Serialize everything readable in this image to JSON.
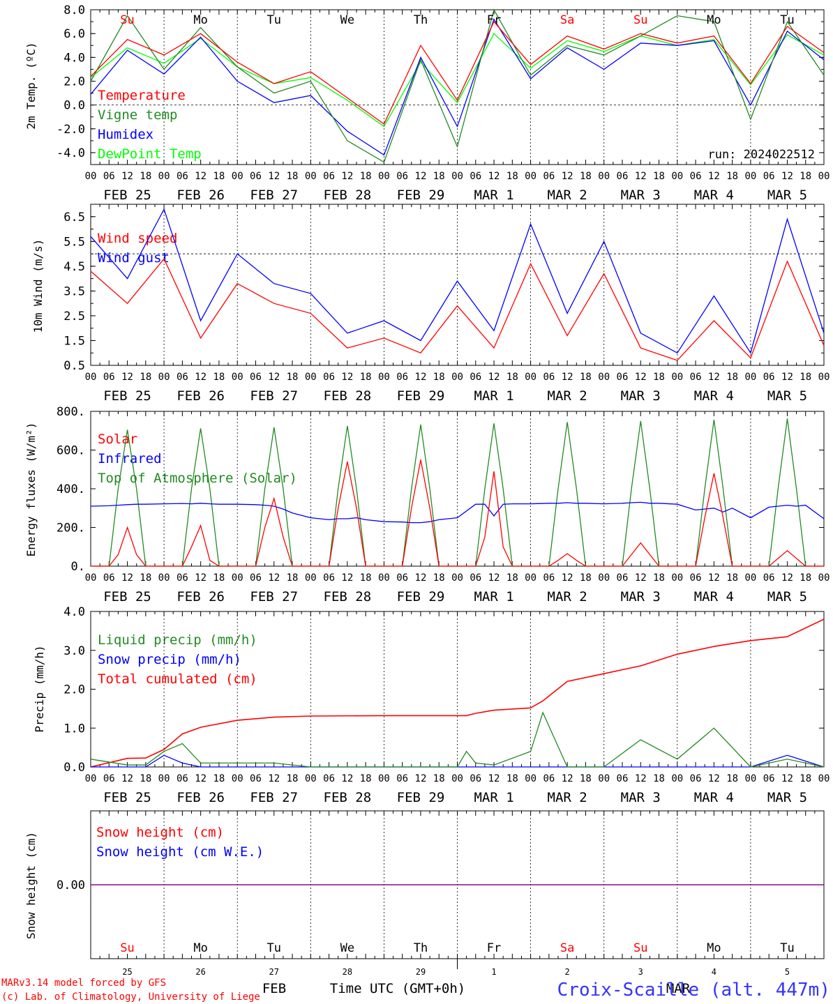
{
  "timeaxis": {
    "hour_labels": [
      "00",
      "06",
      "12",
      "18"
    ],
    "day_labels": [
      "FEB 25",
      "FEB 26",
      "FEB 27",
      "FEB 28",
      "FEB 29",
      "MAR  1",
      "MAR  2",
      "MAR  3",
      "MAR  4",
      "MAR  5"
    ],
    "weekdays": [
      "Su",
      "Mo",
      "Tu",
      "We",
      "Th",
      "Fr",
      "Sa",
      "Su",
      "Mo",
      "Tu"
    ],
    "weekday_colors": [
      "#ff0000",
      "#000000",
      "#000000",
      "#000000",
      "#000000",
      "#000000",
      "#ff0000",
      "#ff0000",
      "#000000",
      "#000000"
    ],
    "day_numbers": [
      "25",
      "26",
      "27",
      "28",
      "29",
      "1",
      "2",
      "3",
      "4",
      "5"
    ],
    "month_feb": "FEB",
    "month_mar": "MAR",
    "xlabel": "Time UTC (GMT+0h)"
  },
  "footer": {
    "model_line": "MARv3.14 model forced by GFS",
    "credit_line": "(c) Lab. of Climatology, University of Liege",
    "location": "Croix-Scaille (alt. 447m)"
  },
  "colors": {
    "red": "#ff0000",
    "green": "#228b22",
    "blue": "#0000ff",
    "lime": "#00ff00",
    "purple": "#800080"
  },
  "chart_data": [
    {
      "type": "line",
      "id": "temp",
      "ylabel": "2m Temp. (ºC)",
      "ylim": [
        -5,
        8
      ],
      "yticks": [
        -4,
        -2,
        0,
        2,
        4,
        6,
        8
      ],
      "ytick_labels": [
        "-4.0",
        "-2.0",
        "0.0",
        "2.0",
        "4.0",
        "6.0",
        "8.0"
      ],
      "ref_line": 0,
      "annotation": "run: 2024022512",
      "x_hours": [
        0,
        12,
        24,
        36,
        48,
        60,
        72,
        84,
        96,
        108,
        120,
        132,
        144,
        156,
        168,
        180,
        192,
        204,
        216,
        228,
        240
      ],
      "series": [
        {
          "name": "Temperature",
          "color": "red",
          "values": [
            2.4,
            5.5,
            4.2,
            6.0,
            3.6,
            1.8,
            2.8,
            0.6,
            -1.6,
            5.0,
            0.4,
            7.0,
            3.4,
            5.8,
            4.7,
            6.0,
            5.2,
            5.8,
            1.8,
            6.6,
            4.4
          ]
        },
        {
          "name": "Vigne temp",
          "color": "green",
          "values": [
            2.0,
            7.5,
            3.0,
            6.5,
            3.2,
            1.0,
            2.0,
            -3.0,
            -4.8,
            3.8,
            -3.5,
            8.0,
            2.5,
            5.0,
            4.2,
            5.8,
            7.5,
            7.0,
            -1.2,
            7.0,
            2.5
          ]
        },
        {
          "name": "Humidex",
          "color": "blue",
          "values": [
            0.9,
            4.6,
            2.6,
            5.7,
            2.0,
            0.2,
            0.8,
            -2.2,
            -4.2,
            4.0,
            -1.8,
            7.2,
            2.2,
            4.8,
            3.0,
            5.2,
            5.0,
            5.4,
            0.0,
            6.2,
            3.8
          ]
        },
        {
          "name": "DewPoint Temp",
          "color": "lime",
          "values": [
            2.3,
            4.8,
            3.5,
            5.6,
            3.2,
            1.8,
            2.3,
            0.4,
            -1.8,
            3.6,
            0.2,
            6.0,
            3.1,
            5.4,
            4.5,
            5.8,
            5.0,
            5.5,
            1.7,
            5.9,
            4.2
          ]
        }
      ]
    },
    {
      "type": "line",
      "id": "wind",
      "ylabel": "10m Wind (m/s)",
      "ylim": [
        0.5,
        7.0
      ],
      "yticks": [
        0.5,
        1.5,
        2.5,
        3.5,
        4.5,
        5.5,
        6.5
      ],
      "ytick_labels": [
        "0.5",
        "1.5",
        "2.5",
        "3.5",
        "4.5",
        "5.5",
        "6.5"
      ],
      "ref_line": 5,
      "x_hours": [
        0,
        12,
        24,
        36,
        48,
        60,
        72,
        84,
        96,
        108,
        120,
        132,
        144,
        156,
        168,
        180,
        192,
        204,
        216,
        228,
        240
      ],
      "series": [
        {
          "name": "Wind speed",
          "color": "red",
          "values": [
            4.3,
            3.0,
            4.8,
            1.6,
            3.8,
            3.0,
            2.6,
            1.2,
            1.6,
            1.0,
            2.9,
            1.2,
            4.6,
            1.7,
            4.2,
            1.2,
            0.7,
            2.3,
            0.8,
            4.7,
            1.3
          ]
        },
        {
          "name": "Wind gust",
          "color": "blue",
          "values": [
            5.7,
            4.0,
            6.8,
            2.3,
            5.0,
            3.8,
            3.4,
            1.8,
            2.3,
            1.5,
            3.9,
            1.9,
            6.2,
            2.6,
            5.5,
            1.8,
            1.0,
            3.3,
            1.0,
            6.4,
            1.8
          ]
        }
      ]
    },
    {
      "type": "line",
      "id": "energy",
      "ylabel": "Energy fluxes (W/m²)",
      "ylim": [
        0,
        800
      ],
      "yticks": [
        0,
        200,
        400,
        600,
        800
      ],
      "ytick_labels": [
        "0.",
        "200.",
        "400.",
        "600.",
        "800."
      ],
      "x_hours": [
        0,
        6,
        9,
        12,
        15,
        18,
        24,
        30,
        33,
        36,
        39,
        42,
        48,
        54,
        57,
        60,
        63,
        66,
        72,
        78,
        81,
        84,
        87,
        90,
        96,
        102,
        105,
        108,
        111,
        114,
        120,
        126,
        129,
        132,
        135,
        138,
        144,
        150,
        153,
        156,
        159,
        162,
        168,
        174,
        177,
        180,
        183,
        186,
        192,
        198,
        201,
        204,
        207,
        210,
        216,
        222,
        225,
        228,
        231,
        234,
        240
      ],
      "series": [
        {
          "name": "Solar",
          "color": "red",
          "values": [
            0,
            0,
            60,
            200,
            60,
            0,
            0,
            0,
            100,
            210,
            30,
            0,
            0,
            0,
            200,
            350,
            150,
            0,
            0,
            0,
            300,
            540,
            300,
            0,
            0,
            0,
            300,
            550,
            300,
            0,
            0,
            0,
            150,
            490,
            100,
            0,
            0,
            0,
            30,
            65,
            30,
            0,
            0,
            0,
            60,
            120,
            60,
            0,
            0,
            0,
            250,
            480,
            250,
            0,
            0,
            0,
            40,
            80,
            40,
            0,
            0
          ]
        },
        {
          "name": "Infrared",
          "color": "blue",
          "values": [
            310,
            312,
            315,
            318,
            320,
            320,
            322,
            324,
            322,
            325,
            322,
            320,
            320,
            318,
            315,
            310,
            295,
            275,
            250,
            240,
            245,
            245,
            250,
            240,
            230,
            228,
            225,
            225,
            230,
            240,
            250,
            320,
            320,
            260,
            320,
            322,
            322,
            325,
            325,
            328,
            325,
            325,
            322,
            325,
            328,
            330,
            325,
            325,
            320,
            290,
            295,
            300,
            280,
            300,
            250,
            305,
            310,
            315,
            310,
            315,
            245
          ]
        },
        {
          "name": "Top of Atmosphere (Solar)",
          "color": "green",
          "values": [
            0,
            0,
            400,
            705,
            400,
            0,
            0,
            0,
            400,
            712,
            400,
            0,
            0,
            0,
            400,
            718,
            400,
            0,
            0,
            0,
            400,
            725,
            400,
            0,
            0,
            0,
            400,
            732,
            400,
            0,
            0,
            0,
            400,
            738,
            400,
            0,
            0,
            0,
            400,
            745,
            400,
            0,
            0,
            0,
            400,
            750,
            400,
            0,
            0,
            0,
            400,
            757,
            400,
            0,
            0,
            0,
            400,
            763,
            400,
            0,
            0
          ]
        }
      ]
    },
    {
      "type": "line",
      "id": "precip",
      "ylabel": "Precip (mm/h)",
      "ylim": [
        0,
        4
      ],
      "yticks": [
        0,
        1,
        2,
        3,
        4
      ],
      "ytick_labels": [
        "0.0",
        "1.0",
        "2.0",
        "3.0",
        "4.0"
      ],
      "x_hours": [
        0,
        12,
        18,
        24,
        30,
        36,
        48,
        60,
        72,
        96,
        120,
        123,
        126,
        132,
        144,
        148,
        156,
        168,
        180,
        192,
        204,
        216,
        228,
        240
      ],
      "series": [
        {
          "name": "Liquid precip (mm/h)",
          "color": "green",
          "values": [
            0.2,
            0.05,
            0.05,
            0.4,
            0.6,
            0.1,
            0.1,
            0.1,
            0.0,
            0.0,
            0.0,
            0.4,
            0.1,
            0.05,
            0.4,
            1.4,
            0.0,
            0.0,
            0.7,
            0.2,
            1.0,
            0.0,
            0.2,
            0.0
          ]
        },
        {
          "name": "Snow precip (mm/h)",
          "color": "blue",
          "values": [
            0.0,
            0.0,
            0.0,
            0.3,
            0.1,
            0.0,
            0.0,
            0.0,
            0.0,
            0.0,
            0.0,
            0.0,
            0.0,
            0.0,
            0.0,
            0.0,
            0.0,
            0.0,
            0.0,
            0.0,
            0.0,
            0.0,
            0.3,
            0.0
          ]
        },
        {
          "name": "Total cumulated (cm)",
          "color": "red",
          "values": [
            0.0,
            0.22,
            0.23,
            0.45,
            0.85,
            1.02,
            1.2,
            1.28,
            1.31,
            1.32,
            1.32,
            1.32,
            1.38,
            1.46,
            1.52,
            1.7,
            2.2,
            2.4,
            2.6,
            2.9,
            3.1,
            3.25,
            3.35,
            3.8
          ]
        }
      ]
    },
    {
      "type": "line",
      "id": "snow",
      "ylabel": "Snow height (cm)",
      "ylim": [
        -1,
        1
      ],
      "yticks": [
        0
      ],
      "ytick_labels": [
        "0.00"
      ],
      "x_hours": [
        0,
        240
      ],
      "series": [
        {
          "name": "Snow height (cm)",
          "color": "red",
          "values": [
            0,
            0
          ]
        },
        {
          "name": "Snow height (cm W.E.)",
          "color": "blue",
          "values": [
            0,
            0
          ]
        }
      ]
    }
  ]
}
